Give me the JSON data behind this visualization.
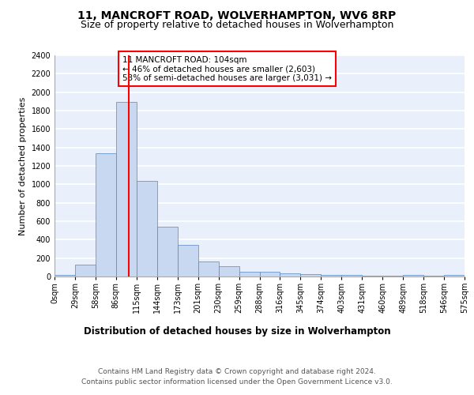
{
  "title1": "11, MANCROFT ROAD, WOLVERHAMPTON, WV6 8RP",
  "title2": "Size of property relative to detached houses in Wolverhampton",
  "xlabel": "Distribution of detached houses by size in Wolverhampton",
  "ylabel": "Number of detached properties",
  "bar_values": [
    20,
    130,
    1340,
    1890,
    1040,
    540,
    340,
    160,
    110,
    55,
    55,
    35,
    30,
    20,
    15,
    10,
    5,
    15,
    5,
    20
  ],
  "categories": [
    "0sqm",
    "29sqm",
    "58sqm",
    "86sqm",
    "115sqm",
    "144sqm",
    "173sqm",
    "201sqm",
    "230sqm",
    "259sqm",
    "288sqm",
    "316sqm",
    "345sqm",
    "374sqm",
    "403sqm",
    "431sqm",
    "460sqm",
    "489sqm",
    "518sqm",
    "546sqm",
    "575sqm"
  ],
  "bar_color": "#c8d8f0",
  "bar_edge_color": "#5585c5",
  "vline_color": "red",
  "annotation_text": "11 MANCROFT ROAD: 104sqm\n← 46% of detached houses are smaller (2,603)\n53% of semi-detached houses are larger (3,031) →",
  "annotation_box_color": "white",
  "annotation_box_edge_color": "red",
  "ylim": [
    0,
    2400
  ],
  "yticks": [
    0,
    200,
    400,
    600,
    800,
    1000,
    1200,
    1400,
    1600,
    1800,
    2000,
    2200,
    2400
  ],
  "footer": "Contains HM Land Registry data © Crown copyright and database right 2024.\nContains public sector information licensed under the Open Government Licence v3.0.",
  "background_color": "#eaf0fb",
  "grid_color": "white",
  "title1_fontsize": 10,
  "title2_fontsize": 9,
  "xlabel_fontsize": 8.5,
  "ylabel_fontsize": 8,
  "tick_fontsize": 7,
  "footer_fontsize": 6.5,
  "annotation_fontsize": 7.5
}
